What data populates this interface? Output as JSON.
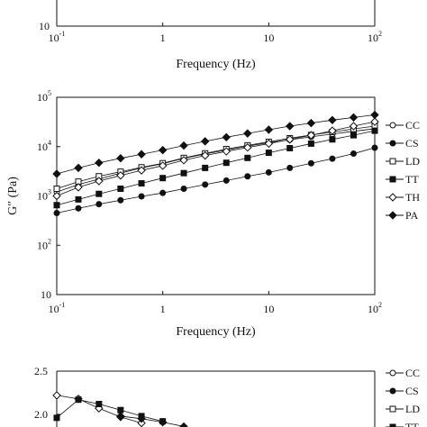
{
  "chart_data": [
    {
      "type": "line",
      "panel": "top (partially visible)",
      "xlabel": "Frequency (Hz)",
      "ylabel": "",
      "xscale": "log",
      "yscale": "log",
      "xlim": [
        0.1,
        100
      ],
      "x_ticks": [
        {
          "base": "10",
          "exp": "-1"
        },
        {
          "base": "1",
          "exp": ""
        },
        {
          "base": "10",
          "exp": ""
        },
        {
          "base": "10",
          "exp": "2"
        }
      ],
      "y_ticks_visible": [
        "10"
      ],
      "series": []
    },
    {
      "type": "line",
      "panel": "middle",
      "xlabel": "Frequency (Hz)",
      "ylabel": "G″ (Pa)",
      "xscale": "log",
      "yscale": "log",
      "xlim": [
        0.1,
        100
      ],
      "ylim": [
        10,
        100000
      ],
      "x_ticks": [
        {
          "base": "10",
          "exp": "-1"
        },
        {
          "base": "1",
          "exp": ""
        },
        {
          "base": "10",
          "exp": ""
        },
        {
          "base": "10",
          "exp": "2"
        }
      ],
      "y_ticks": [
        {
          "base": "10",
          "exp": "5"
        },
        {
          "base": "10",
          "exp": "4"
        },
        {
          "base": "10",
          "exp": "3"
        },
        {
          "base": "10",
          "exp": "2"
        },
        {
          "base": "10",
          "exp": ""
        }
      ],
      "legend_position": "right",
      "series": [
        {
          "name": "CC",
          "marker": "circle-open",
          "x": [
            0.1,
            0.16,
            0.25,
            0.4,
            0.63,
            1,
            1.58,
            2.51,
            3.98,
            6.31,
            10,
            15.8,
            25.1,
            39.8,
            63.1,
            100
          ],
          "y": [
            1200,
            1700,
            2200,
            2900,
            3700,
            4500,
            5800,
            7100,
            8500,
            10200,
            12000,
            13800,
            15800,
            18000,
            20500,
            23000
          ]
        },
        {
          "name": "CS",
          "marker": "circle-filled",
          "x": [
            0.1,
            0.16,
            0.25,
            0.4,
            0.63,
            1,
            1.58,
            2.51,
            3.98,
            6.31,
            10,
            15.8,
            25.1,
            39.8,
            63.1,
            100
          ],
          "y": [
            450,
            560,
            680,
            820,
            980,
            1150,
            1400,
            1700,
            2050,
            2500,
            3000,
            3700,
            4600,
            5700,
            7200,
            9500
          ]
        },
        {
          "name": "LD",
          "marker": "square-open",
          "x": [
            0.1,
            0.16,
            0.25,
            0.4,
            0.63,
            1,
            1.58,
            2.51,
            3.98,
            6.31,
            10,
            15.8,
            25.1,
            39.8,
            63.1,
            100
          ],
          "y": [
            1400,
            1950,
            2500,
            3100,
            3800,
            4600,
            5900,
            7300,
            8900,
            10600,
            12500,
            14800,
            17200,
            19800,
            22800,
            26000
          ]
        },
        {
          "name": "TT",
          "marker": "square-filled",
          "x": [
            0.1,
            0.16,
            0.25,
            0.4,
            0.63,
            1,
            1.58,
            2.51,
            3.98,
            6.31,
            10,
            15.8,
            25.1,
            39.8,
            63.1,
            100
          ],
          "y": [
            650,
            850,
            1100,
            1400,
            1800,
            2300,
            2900,
            3700,
            4700,
            5900,
            7500,
            9300,
            11500,
            14000,
            17000,
            21000
          ]
        },
        {
          "name": "TH",
          "marker": "diamond-open",
          "x": [
            0.1,
            0.16,
            0.25,
            0.4,
            0.63,
            1,
            1.58,
            2.51,
            3.98,
            6.31,
            10,
            15.8,
            25.1,
            39.8,
            63.1,
            100
          ],
          "y": [
            1000,
            1500,
            2000,
            2600,
            3300,
            4100,
            5300,
            6600,
            8000,
            9600,
            11500,
            14000,
            17000,
            21000,
            26000,
            32000
          ]
        },
        {
          "name": "PA",
          "marker": "diamond-filled",
          "x": [
            0.1,
            0.16,
            0.25,
            0.4,
            0.63,
            1,
            1.58,
            2.51,
            3.98,
            6.31,
            10,
            15.8,
            25.1,
            39.8,
            63.1,
            100
          ],
          "y": [
            2800,
            3700,
            4700,
            5800,
            7000,
            8500,
            10500,
            12800,
            15500,
            18500,
            22000,
            26000,
            30000,
            34500,
            39000,
            44000
          ]
        }
      ]
    },
    {
      "type": "line",
      "panel": "bottom (partially visible)",
      "xlabel": "",
      "ylabel": "",
      "ylim_visible": [
        1.8,
        2.6
      ],
      "y_ticks": [
        "2.5",
        "2.0"
      ],
      "legend_position": "right",
      "legend_entries": [
        "CC",
        "CS",
        "LD",
        "TT"
      ],
      "series": [
        {
          "name": "TH",
          "marker": "diamond-open",
          "x": [
            0.1,
            0.16,
            0.25,
            0.4,
            0.63
          ],
          "y": [
            2.22,
            2.18,
            2.07,
            1.97,
            1.9
          ]
        },
        {
          "name": "TT",
          "marker": "square-filled",
          "x": [
            0.1,
            0.16,
            0.25,
            0.4,
            0.63,
            1
          ],
          "y": [
            1.96,
            2.17,
            2.12,
            2.05,
            1.98,
            1.92
          ]
        },
        {
          "name": "PA",
          "marker": "diamond-filled",
          "x": [
            0.4,
            0.63,
            1,
            1.58
          ],
          "y": [
            1.98,
            1.95,
            1.91,
            1.86
          ]
        }
      ]
    }
  ]
}
